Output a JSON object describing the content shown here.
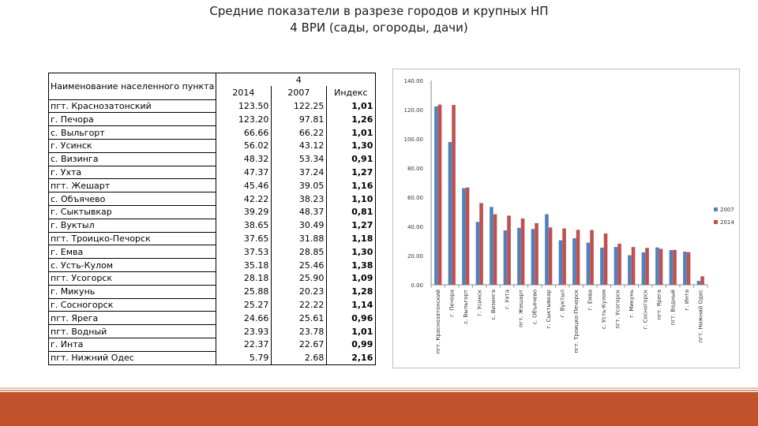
{
  "title": {
    "line1": "Средние показатели в разрезе городов и крупных НП",
    "line2": "4 ВРИ (сады, огороды, дачи)"
  },
  "table": {
    "header_name": "Наименование населенного пункта",
    "header_group": "4",
    "header_2014": "2014",
    "header_2007": "2007",
    "header_index": "Индекс",
    "rows": [
      {
        "name": "пгт. Краснозатонский",
        "v2014": "123.50",
        "v2007": "122.25",
        "index": "1,01"
      },
      {
        "name": "г. Печора",
        "v2014": "123.20",
        "v2007": "97.81",
        "index": "1,26"
      },
      {
        "name": "с. Выльгорт",
        "v2014": "66.66",
        "v2007": "66.22",
        "index": "1,01"
      },
      {
        "name": "г. Усинск",
        "v2014": "56.02",
        "v2007": "43.12",
        "index": "1,30"
      },
      {
        "name": "с. Визинга",
        "v2014": "48.32",
        "v2007": "53.34",
        "index": "0,91"
      },
      {
        "name": "г. Ухта",
        "v2014": "47.37",
        "v2007": "37.24",
        "index": "1,27"
      },
      {
        "name": "пгт. Жешарт",
        "v2014": "45.46",
        "v2007": "39.05",
        "index": "1,16"
      },
      {
        "name": "с. Объячево",
        "v2014": "42.22",
        "v2007": "38.23",
        "index": "1,10"
      },
      {
        "name": "г. Сыктывкар",
        "v2014": "39.29",
        "v2007": "48.37",
        "index": "0,81"
      },
      {
        "name": "г. Вуктыл",
        "v2014": "38.65",
        "v2007": "30.49",
        "index": "1,27"
      },
      {
        "name": "пгт. Троицко-Печорск",
        "v2014": "37.65",
        "v2007": "31.88",
        "index": "1,18"
      },
      {
        "name": "г. Емва",
        "v2014": "37.53",
        "v2007": "28.85",
        "index": "1,30"
      },
      {
        "name": "с. Усть-Кулом",
        "v2014": "35.18",
        "v2007": "25.46",
        "index": "1,38"
      },
      {
        "name": "пгт. Усогорск",
        "v2014": "28.18",
        "v2007": "25.90",
        "index": "1,09"
      },
      {
        "name": "г. Микунь",
        "v2014": "25.88",
        "v2007": "20.23",
        "index": "1,28"
      },
      {
        "name": "г. Сосногорск",
        "v2014": "25.27",
        "v2007": "22.22",
        "index": "1,14"
      },
      {
        "name": "пгт. Ярега",
        "v2014": "24.66",
        "v2007": "25.61",
        "index": "0,96"
      },
      {
        "name": "пгт. Водный",
        "v2014": "23.93",
        "v2007": "23.78",
        "index": "1,01"
      },
      {
        "name": "г. Инта",
        "v2014": "22.37",
        "v2007": "22.67",
        "index": "0,99"
      },
      {
        "name": "пгт. Нижний Одес",
        "v2014": "5.79",
        "v2007": "2.68",
        "index": "2,16"
      }
    ]
  },
  "chart_data": {
    "type": "bar",
    "categories": [
      "пгт. Краснозатонский",
      "г. Печора",
      "с. Выльгорт",
      "г. Усинск",
      "с. Визинга",
      "г. Ухта",
      "пгт. Жешарт",
      "с. Объячево",
      "г. Сыктывкар",
      "г. Вуктыл",
      "пгт. Троицко-Печорск",
      "г. Емва",
      "с. Усть-Кулом",
      "пгт. Усогорск",
      "г. Микунь",
      "г. Сосногорск",
      "пгт. Ярега",
      "пгт. Водный",
      "г. Инта",
      "пгт. Нижний Одес"
    ],
    "series": [
      {
        "name": "2007",
        "color": "#4f81bd",
        "values": [
          122.25,
          97.81,
          66.22,
          43.12,
          53.34,
          37.24,
          39.05,
          38.23,
          48.37,
          30.49,
          31.88,
          28.85,
          25.46,
          25.9,
          20.23,
          22.22,
          25.61,
          23.78,
          22.67,
          2.68
        ]
      },
      {
        "name": "2014",
        "color": "#c0504d",
        "values": [
          123.5,
          123.2,
          66.66,
          56.02,
          48.32,
          47.37,
          45.46,
          42.22,
          39.29,
          38.65,
          37.65,
          37.53,
          35.18,
          28.18,
          25.88,
          25.27,
          24.66,
          23.93,
          22.37,
          5.79
        ]
      }
    ],
    "yticks": [
      "0.00",
      "20.00",
      "40.00",
      "60.00",
      "80.00",
      "100.00",
      "120.00",
      "140.00"
    ],
    "ylim": [
      0,
      140
    ],
    "grid": false,
    "legend_position": "right"
  }
}
